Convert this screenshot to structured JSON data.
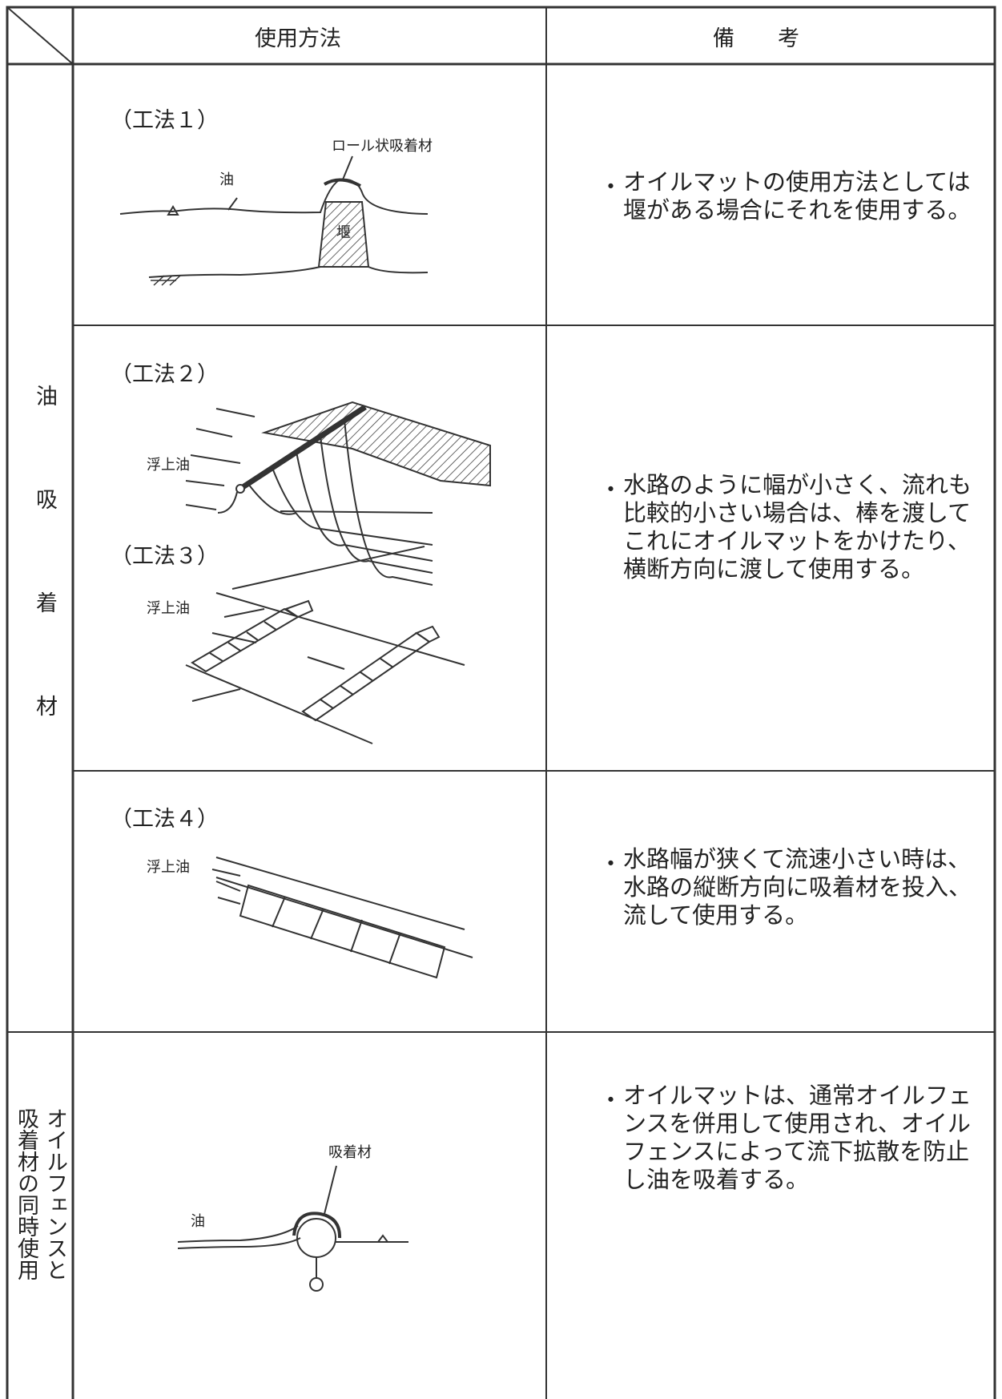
{
  "header": {
    "method": "使用方法",
    "remarks": "備　　考"
  },
  "groups": [
    {
      "label": "油吸着材",
      "rows": [
        {
          "methods": [
            {
              "name": "（工法１）",
              "labels": [
                "ロール状吸着材",
                "油",
                "堰"
              ]
            }
          ],
          "remark": "オイルマットの使用方法としては堰がある場合にそれを使用する。"
        },
        {
          "methods": [
            {
              "name": "（工法２）",
              "labels": [
                "浮上油"
              ]
            },
            {
              "name": "（工法３）",
              "labels": [
                "浮上油"
              ]
            }
          ],
          "remark": "水路のように幅が小さく、流れも比較的小さい場合は、棒を渡してこれにオイルマットをかけたり、横断方向に渡して使用する。"
        },
        {
          "methods": [
            {
              "name": "（工法４）",
              "labels": [
                "浮上油"
              ]
            }
          ],
          "remark": "水路幅が狭くて流速小さい時は、水路の縦断方向に吸着材を投入、流して使用する。"
        }
      ]
    },
    {
      "label": [
        "オイルフェンスと",
        "吸着材の同時使用"
      ],
      "rows": [
        {
          "methods": [
            {
              "labels": [
                "吸着材",
                "油"
              ]
            }
          ],
          "remark": "オイルマットは、通常オイルフェンスを併用して使用され、オイルフェンスによって流下拡散を防止し油を吸着する。"
        }
      ]
    }
  ]
}
